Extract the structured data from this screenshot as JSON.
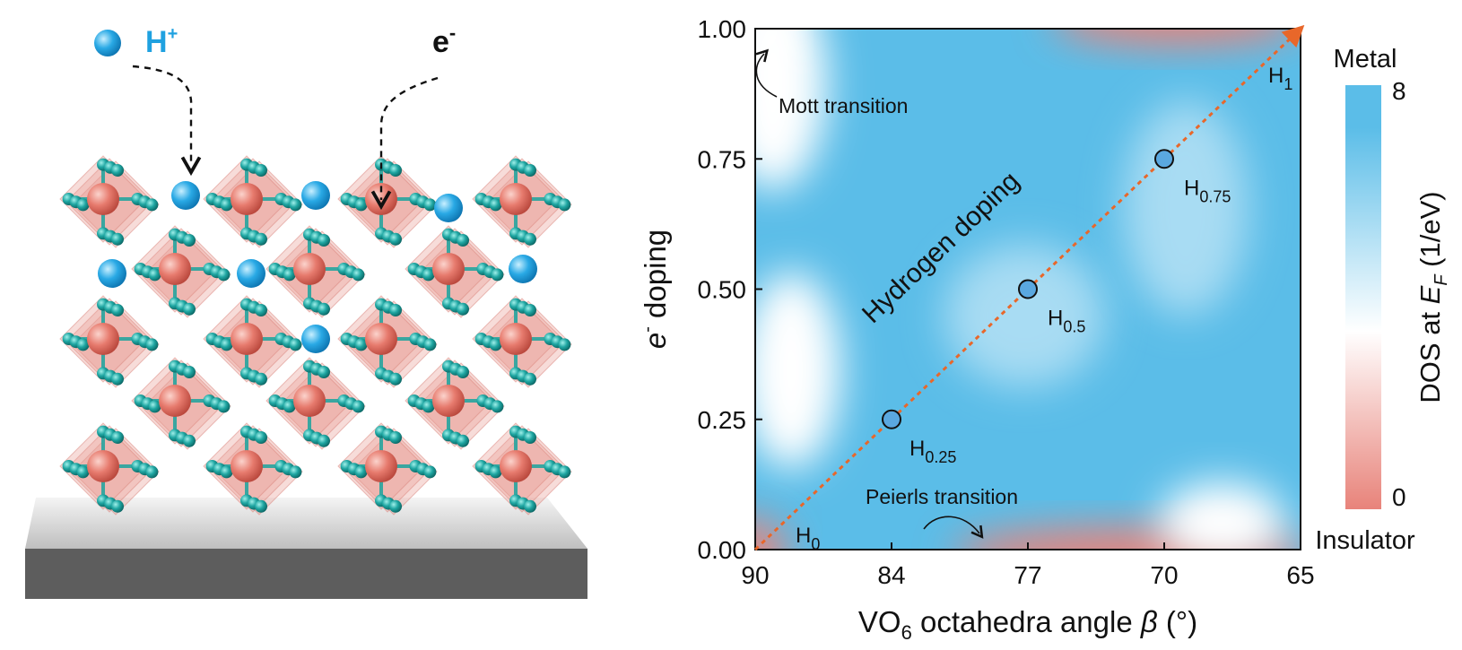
{
  "illustration": {
    "proton_label": [
      "H",
      "+"
    ],
    "electron_label": [
      "e",
      "-"
    ]
  },
  "chart_data": {
    "type": "heatmap-path",
    "x_label_parts": [
      "VO",
      "6",
      " octahedra angle ",
      "β",
      " (°)"
    ],
    "y_label_parts": [
      "e",
      "-",
      " doping"
    ],
    "categories": [
      "90",
      "84",
      "77",
      "70",
      "65"
    ],
    "ylim": [
      0,
      1
    ],
    "yticks": [
      {
        "value": 0,
        "label": "0.00"
      },
      {
        "value": 0.25,
        "label": "0.25"
      },
      {
        "value": 0.5,
        "label": "0.50"
      },
      {
        "value": 0.75,
        "label": "0.75"
      },
      {
        "value": 1,
        "label": "1.00"
      }
    ],
    "series": [
      {
        "name": "Hydrogen doping",
        "color": "#e8672a",
        "values": [
          0,
          0.25,
          0.5,
          0.75,
          1
        ],
        "markers": [
          false,
          true,
          true,
          true,
          false
        ],
        "marker_color": "#5aa8e0",
        "point_labels": [
          {
            "text": "H",
            "sub": "0"
          },
          {
            "text": "H",
            "sub": "0.25"
          },
          {
            "text": "H",
            "sub": "0.5"
          },
          {
            "text": "H",
            "sub": "0.75"
          },
          {
            "text": "H",
            "sub": "1"
          }
        ]
      }
    ],
    "annotations": [
      "Mott transition",
      "Peierls transition"
    ],
    "colorbar": {
      "label_parts": [
        "DOS at ",
        "E",
        "F",
        " (1/eV)"
      ],
      "lim": [
        0,
        8
      ],
      "ticks": [
        0,
        8
      ],
      "top_label": "Metal",
      "bottom_label": "Insulator",
      "colors": [
        "#e8837a",
        "#ffffff",
        "#5bbde8"
      ]
    }
  }
}
